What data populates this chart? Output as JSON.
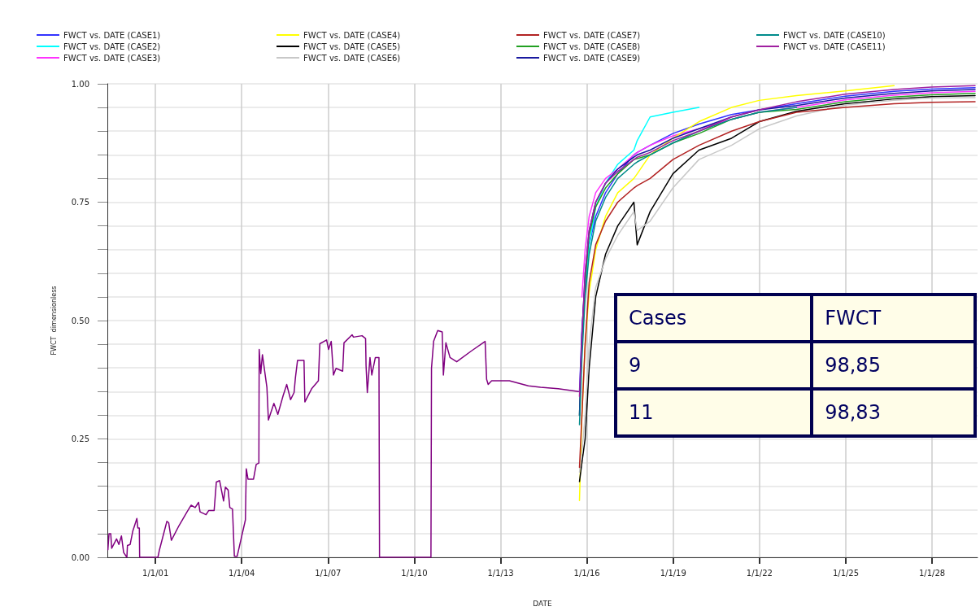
{
  "chart_data": {
    "type": "line",
    "xlabel": "DATE",
    "ylabel": "FWCT  dimensionless",
    "xlim": [
      "1999-05",
      "2029-08"
    ],
    "xticks": [
      {
        "value": "2001-01-01",
        "label": "1/1/01"
      },
      {
        "value": "2004-01-01",
        "label": "1/1/04"
      },
      {
        "value": "2007-01-01",
        "label": "1/1/07"
      },
      {
        "value": "2010-01-01",
        "label": "1/1/10"
      },
      {
        "value": "2013-01-01",
        "label": "1/1/13"
      },
      {
        "value": "2016-01-01",
        "label": "1/1/16"
      },
      {
        "value": "2019-01-01",
        "label": "1/1/19"
      },
      {
        "value": "2022-01-01",
        "label": "1/1/22"
      },
      {
        "value": "2025-01-01",
        "label": "1/1/25"
      },
      {
        "value": "2028-01-01",
        "label": "1/1/28"
      }
    ],
    "ylim": [
      0,
      1
    ],
    "yticks": [
      {
        "value": 0,
        "label": "0.00"
      },
      {
        "value": 0.05,
        "label": null
      },
      {
        "value": 0.1,
        "label": null
      },
      {
        "value": 0.15,
        "label": null
      },
      {
        "value": 0.2,
        "label": null
      },
      {
        "value": 0.25,
        "label": "0.25"
      },
      {
        "value": 0.3,
        "label": null
      },
      {
        "value": 0.35,
        "label": null
      },
      {
        "value": 0.4,
        "label": null
      },
      {
        "value": 0.45,
        "label": null
      },
      {
        "value": 0.5,
        "label": "0.50"
      },
      {
        "value": 0.55,
        "label": null
      },
      {
        "value": 0.6,
        "label": null
      },
      {
        "value": 0.65,
        "label": null
      },
      {
        "value": 0.7,
        "label": null
      },
      {
        "value": 0.75,
        "label": "0.75"
      },
      {
        "value": 0.8,
        "label": null
      },
      {
        "value": 0.85,
        "label": null
      },
      {
        "value": 0.9,
        "label": null
      },
      {
        "value": 0.95,
        "label": null
      },
      {
        "value": 1,
        "label": "1.00"
      }
    ],
    "grid": true,
    "legend": "top",
    "marker": "none",
    "line_style": "solid",
    "x": [
      "2015-09-29",
      "2015-10-30",
      "2015-12-10",
      "2016-01-30",
      "2016-04-22",
      "2016-08-25",
      "2017-01-27",
      "2017-08-20",
      "2017-10-01",
      "2018-03-14",
      "2018-12-28",
      "2019-11-24",
      "2021-01-11",
      "2021-12-28",
      "2023-04-16",
      "2024-12-24",
      "2026-09-05",
      "2027-12-24",
      "2029-07-01"
    ],
    "series": [
      {
        "color": "#800080",
        "x": [
          "1999-05-08",
          "1999-05-22",
          "1999-06-13",
          "1999-06-25",
          "1999-08-26",
          "1999-09-24",
          "1999-10-27",
          "1999-11-24",
          "2000-01-04",
          "2000-01-11",
          "2000-02-14",
          "2000-03-20",
          "2000-05-10",
          "2000-05-22",
          "2000-06-10",
          "2000-06-14",
          "2001-02-01",
          "2001-02-21",
          "2001-05-26",
          "2001-06-18",
          "2001-07-22",
          "2001-10-27",
          "2002-02-06",
          "2002-03-30",
          "2002-05-20",
          "2002-07-02",
          "2002-07-21",
          "2002-10-05",
          "2002-11-09",
          "2003-01-16",
          "2003-02-13",
          "2003-03-26",
          "2003-05-16",
          "2003-06-08",
          "2003-07-13",
          "2003-08-03",
          "2003-09-06",
          "2003-09-30",
          "2003-11-04",
          "2004-02-17",
          "2004-02-28",
          "2004-03-21",
          "2004-05-30",
          "2004-07-03",
          "2004-08-06",
          "2004-08-10",
          "2004-08-30",
          "2004-09-20",
          "2004-11-16",
          "2004-12-05",
          "2005-02-13",
          "2005-04-04",
          "2005-06-11",
          "2005-07-26",
          "2005-09-13",
          "2005-10-27",
          "2005-11-13",
          "2005-12-10",
          "2006-03-02",
          "2006-03-13",
          "2006-06-07",
          "2006-09-01",
          "2006-09-19",
          "2006-12-14",
          "2007-01-08",
          "2007-02-11",
          "2007-03-11",
          "2007-04-13",
          "2007-07-06",
          "2007-07-23",
          "2007-11-03",
          "2007-11-20",
          "2008-03-08",
          "2008-04-22",
          "2008-04-28",
          "2008-05-14",
          "2008-06-17",
          "2008-07-10",
          "2008-08-24",
          "2008-10-09",
          "2008-10-16",
          "2010-07-31",
          "2010-08-07",
          "2010-09-03",
          "2010-10-25",
          "2010-12-21",
          "2011-01-05",
          "2011-02-06",
          "2011-03-30",
          "2011-06-23",
          "2011-12-28",
          "2012-06-18",
          "2012-07-07",
          "2012-07-27",
          "2012-09-09",
          "2013-04-22",
          "2013-12-19",
          "2014-05-23",
          "2015-01-01",
          "2015-09-16"
        ],
        "values": [
          0.016,
          0.05,
          0.05,
          0.019,
          0.039,
          0.027,
          0.045,
          0.01,
          0,
          0.025,
          0.027,
          0.056,
          0.082,
          0.062,
          0.062,
          0,
          0,
          0.016,
          0.076,
          0.073,
          0.036,
          0.067,
          0.096,
          0.11,
          0.105,
          0.116,
          0.096,
          0.09,
          0.099,
          0.099,
          0.159,
          0.162,
          0.119,
          0.148,
          0.142,
          0.105,
          0.102,
          0.002,
          0.002,
          0.079,
          0.187,
          0.165,
          0.165,
          0.196,
          0.199,
          0.439,
          0.388,
          0.428,
          0.359,
          0.29,
          0.325,
          0.302,
          0.342,
          0.365,
          0.333,
          0.348,
          0.379,
          0.416,
          0.416,
          0.328,
          0.356,
          0.373,
          0.451,
          0.459,
          0.439,
          0.456,
          0.385,
          0.399,
          0.393,
          0.453,
          0.47,
          0.465,
          0.468,
          0.462,
          0.405,
          0.348,
          0.422,
          0.385,
          0.422,
          0.422,
          0,
          0,
          0.399,
          0.456,
          0.479,
          0.476,
          0.385,
          0.453,
          0.422,
          0.413,
          0.436,
          0.456,
          0.376,
          0.365,
          0.373,
          0.373,
          0.362,
          0.359,
          0.356,
          0.35
        ]
      },
      {
        "name": "FWCT vs. DATE (CASE1)",
        "color": "#3333ff",
        "values": [
          0.35,
          0.48,
          0.58,
          0.66,
          0.72,
          0.77,
          0.81,
          0.85,
          0.855,
          0.87,
          0.895,
          0.915,
          0.935,
          0.945,
          0.958,
          0.974,
          0.984,
          0.989,
          0.992
        ]
      },
      {
        "name": "FWCT vs. DATE (CASE2)",
        "color": "#00ffff",
        "values": [
          null,
          null,
          0.56,
          0.66,
          0.74,
          0.79,
          0.83,
          0.86,
          0.88,
          0.93,
          0.94,
          0.95,
          null,
          null,
          null,
          null,
          null,
          null,
          null
        ]
      },
      {
        "name": "FWCT vs. DATE (CASE3)",
        "color": "#ff33ff",
        "values": [
          null,
          0.55,
          0.65,
          0.72,
          0.77,
          0.8,
          0.82,
          0.85,
          0.855,
          0.87,
          0.89,
          0.905,
          0.925,
          0.94,
          0.95,
          0.966,
          0.976,
          0.981,
          0.984
        ]
      },
      {
        "name": "FWCT vs. DATE (CASE4)",
        "color": "#ffff00",
        "values": [
          0.12,
          0.3,
          0.45,
          0.56,
          0.65,
          0.72,
          0.77,
          0.8,
          0.81,
          0.85,
          0.885,
          0.92,
          0.95,
          0.965,
          0.975,
          0.985,
          0.996,
          null,
          null
        ]
      },
      {
        "name": "FWCT vs. DATE (CASE5)",
        "color": "#000000",
        "values": [
          0.16,
          0.2,
          0.25,
          0.4,
          0.55,
          0.64,
          0.7,
          0.75,
          0.66,
          0.73,
          0.81,
          0.86,
          0.885,
          0.92,
          0.942,
          0.958,
          0.968,
          0.973,
          0.975
        ]
      },
      {
        "name": "FWCT vs. DATE (CASE6)",
        "color": "#c8c8c8",
        "values": [
          0.18,
          0.22,
          0.3,
          0.45,
          0.57,
          0.63,
          0.68,
          0.73,
          0.69,
          0.71,
          0.78,
          0.84,
          0.87,
          0.905,
          0.932,
          0.955,
          0.965,
          0.97,
          0.971
        ]
      },
      {
        "name": "FWCT vs. DATE (CASE7)",
        "color": "#b22222",
        "values": [
          0.19,
          0.3,
          0.45,
          0.58,
          0.66,
          0.71,
          0.75,
          0.78,
          0.785,
          0.8,
          0.84,
          0.87,
          0.9,
          0.92,
          0.94,
          0.95,
          0.958,
          0.961,
          0.962
        ]
      },
      {
        "name": "FWCT vs. DATE (CASE8)",
        "color": "#22a022",
        "values": [
          0.3,
          0.45,
          0.58,
          0.68,
          0.74,
          0.78,
          0.81,
          0.84,
          0.842,
          0.85,
          0.875,
          0.895,
          0.925,
          0.94,
          0.946,
          0.962,
          0.972,
          0.977,
          0.98
        ]
      },
      {
        "name": "FWCT vs. DATE (CASE9)",
        "color": "#1a1aa0",
        "values": [
          0.3,
          0.47,
          0.6,
          0.69,
          0.75,
          0.79,
          0.82,
          0.845,
          0.85,
          0.86,
          0.885,
          0.905,
          0.93,
          0.945,
          0.954,
          0.97,
          0.98,
          0.985,
          0.988
        ]
      },
      {
        "name": "FWCT vs. DATE (CASE10)",
        "color": "#008b8b",
        "values": [
          0.28,
          0.42,
          0.55,
          0.64,
          0.71,
          0.76,
          0.8,
          0.83,
          0.835,
          0.85,
          0.875,
          0.9,
          0.925,
          0.94,
          0.95,
          null,
          null,
          null,
          null
        ]
      },
      {
        "name": "FWCT vs. DATE (CASE11)",
        "color": "#a020a0",
        "values": [
          0.34,
          0.47,
          0.6,
          0.69,
          0.75,
          0.79,
          0.815,
          0.84,
          0.845,
          0.855,
          0.88,
          0.9,
          0.93,
          0.945,
          0.962,
          0.978,
          0.988,
          0.993,
          0.996
        ]
      }
    ],
    "annotations": [
      "Cases",
      "FWCT",
      "9",
      "98,85",
      "11",
      "98,83"
    ]
  }
}
